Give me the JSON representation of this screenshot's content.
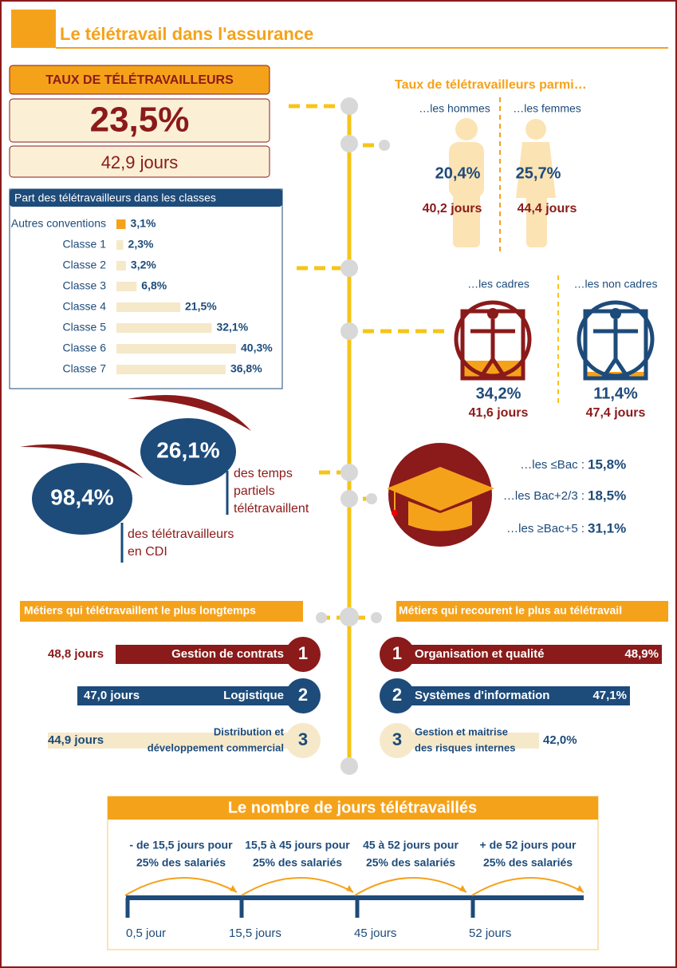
{
  "title": "Le télétravail dans l'assurance",
  "rate": {
    "heading": "TAUX DE TÉLÉTRAVAILLEURS",
    "value": "23,5%",
    "days": "42,9 jours"
  },
  "classes": {
    "title": "Part des télétravailleurs dans les classes",
    "color": "#f6e9c9",
    "highlight": "#f5a21b",
    "xlim": [
      0,
      40.3
    ],
    "items": [
      {
        "label": "Autres conventions",
        "value": 3.1,
        "value_label": "3,1%"
      },
      {
        "label": "Classe 1",
        "value": 2.3,
        "value_label": "2,3%"
      },
      {
        "label": "Classe 2",
        "value": 3.2,
        "value_label": "3,2%"
      },
      {
        "label": "Classe 3",
        "value": 6.8,
        "value_label": "6,8%"
      },
      {
        "label": "Classe 4",
        "value": 21.5,
        "value_label": "21,5%"
      },
      {
        "label": "Classe 5",
        "value": 32.1,
        "value_label": "32,1%"
      },
      {
        "label": "Classe 6",
        "value": 40.3,
        "value_label": "40,3%"
      },
      {
        "label": "Classe 7",
        "value": 36.8,
        "value_label": "36,8%"
      }
    ]
  },
  "gender": {
    "title": "Taux de télétravailleurs  parmi…",
    "groups": [
      {
        "label": "…les hommes",
        "rate": "20,4%",
        "days": "40,2 jours"
      },
      {
        "label": "…les femmes",
        "rate": "25,7%",
        "days": "44,4 jours"
      }
    ]
  },
  "status": {
    "groups": [
      {
        "label": "…les cadres",
        "rate": "34,2%",
        "days": "41,6 jours"
      },
      {
        "label": "…les non cadres",
        "rate": "11,4%",
        "days": "47,4 jours"
      }
    ]
  },
  "cdi": {
    "rate": "98,4%",
    "text": [
      "des télétravailleurs",
      "en CDI"
    ]
  },
  "part_time": {
    "rate": "26,1%",
    "text": [
      "des temps",
      "partiels",
      "télétravaillent"
    ]
  },
  "education": [
    {
      "label": "…les ≤Bac :",
      "value": "15,8%"
    },
    {
      "label": "…les Bac+2/3 :",
      "value": "18,5%"
    },
    {
      "label": "…les ≥Bac+5 :",
      "value": "31,1%"
    }
  ],
  "longest": {
    "title": "Métiers qui télétravaillent le plus longtemps",
    "items": [
      {
        "rank": "1",
        "name": [
          "Gestion de contrats"
        ],
        "value": "48,8 jours"
      },
      {
        "rank": "2",
        "name": [
          "Logistique"
        ],
        "value": "47,0 jours"
      },
      {
        "rank": "3",
        "name": [
          "Distribution et",
          "développement  commercial"
        ],
        "value": "44,9 jours"
      }
    ]
  },
  "most": {
    "title": "Métiers qui recourent le plus au télétravail",
    "items": [
      {
        "rank": "1",
        "name": [
          "Organisation et qualité"
        ],
        "value": "48,9%"
      },
      {
        "rank": "2",
        "name": [
          "Systèmes d'information"
        ],
        "value": "47,1%"
      },
      {
        "rank": "3",
        "name": [
          "Gestion et maitrise",
          "des risques internes"
        ],
        "value": "42,0%"
      }
    ]
  },
  "days": {
    "title": "Le nombre de jours télétravaillés",
    "segments": [
      [
        "- de 15,5 jours pour",
        "25% des salariés"
      ],
      [
        "15,5 à 45 jours pour",
        "25% des salariés"
      ],
      [
        "45 à 52 jours pour",
        "25% des salariés"
      ],
      [
        "+ de 52 jours pour",
        "25% des salariés"
      ]
    ],
    "ticks": [
      "0,5 jour",
      "15,5 jours",
      "45 jours",
      "52 jours"
    ]
  }
}
